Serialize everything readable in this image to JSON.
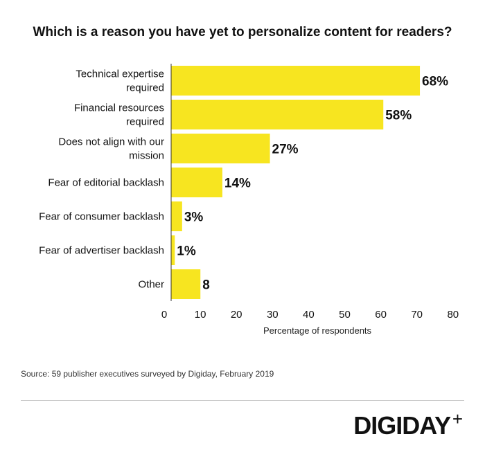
{
  "chart_data": {
    "type": "bar",
    "orientation": "horizontal",
    "title": "Which is a reason you have yet to personalize content for readers?",
    "categories": [
      [
        "Technical expertise",
        "required"
      ],
      [
        "Financial resources",
        "required"
      ],
      [
        "Does not align with our",
        "mission"
      ],
      [
        "Fear of editorial backlash"
      ],
      [
        "Fear of consumer backlash"
      ],
      [
        "Fear of advertiser backlash"
      ],
      [
        "Other"
      ]
    ],
    "values": [
      68,
      58,
      27,
      14,
      3,
      1,
      8
    ],
    "data_labels": [
      "68%",
      "58%",
      "27%",
      "14%",
      "3%",
      "1%",
      "8"
    ],
    "xlabel": "Percentage of respondents",
    "xlim": [
      0,
      80
    ],
    "xticks": [
      "0",
      "10",
      "20",
      "30",
      "40",
      "50",
      "60",
      "70",
      "80"
    ],
    "bar_color": "#f7e520",
    "grid": false
  },
  "source": "Source: 59 publisher executives surveyed by Digiday,  February 2019",
  "logo": "DIGIDAY",
  "logo_plus": "+"
}
